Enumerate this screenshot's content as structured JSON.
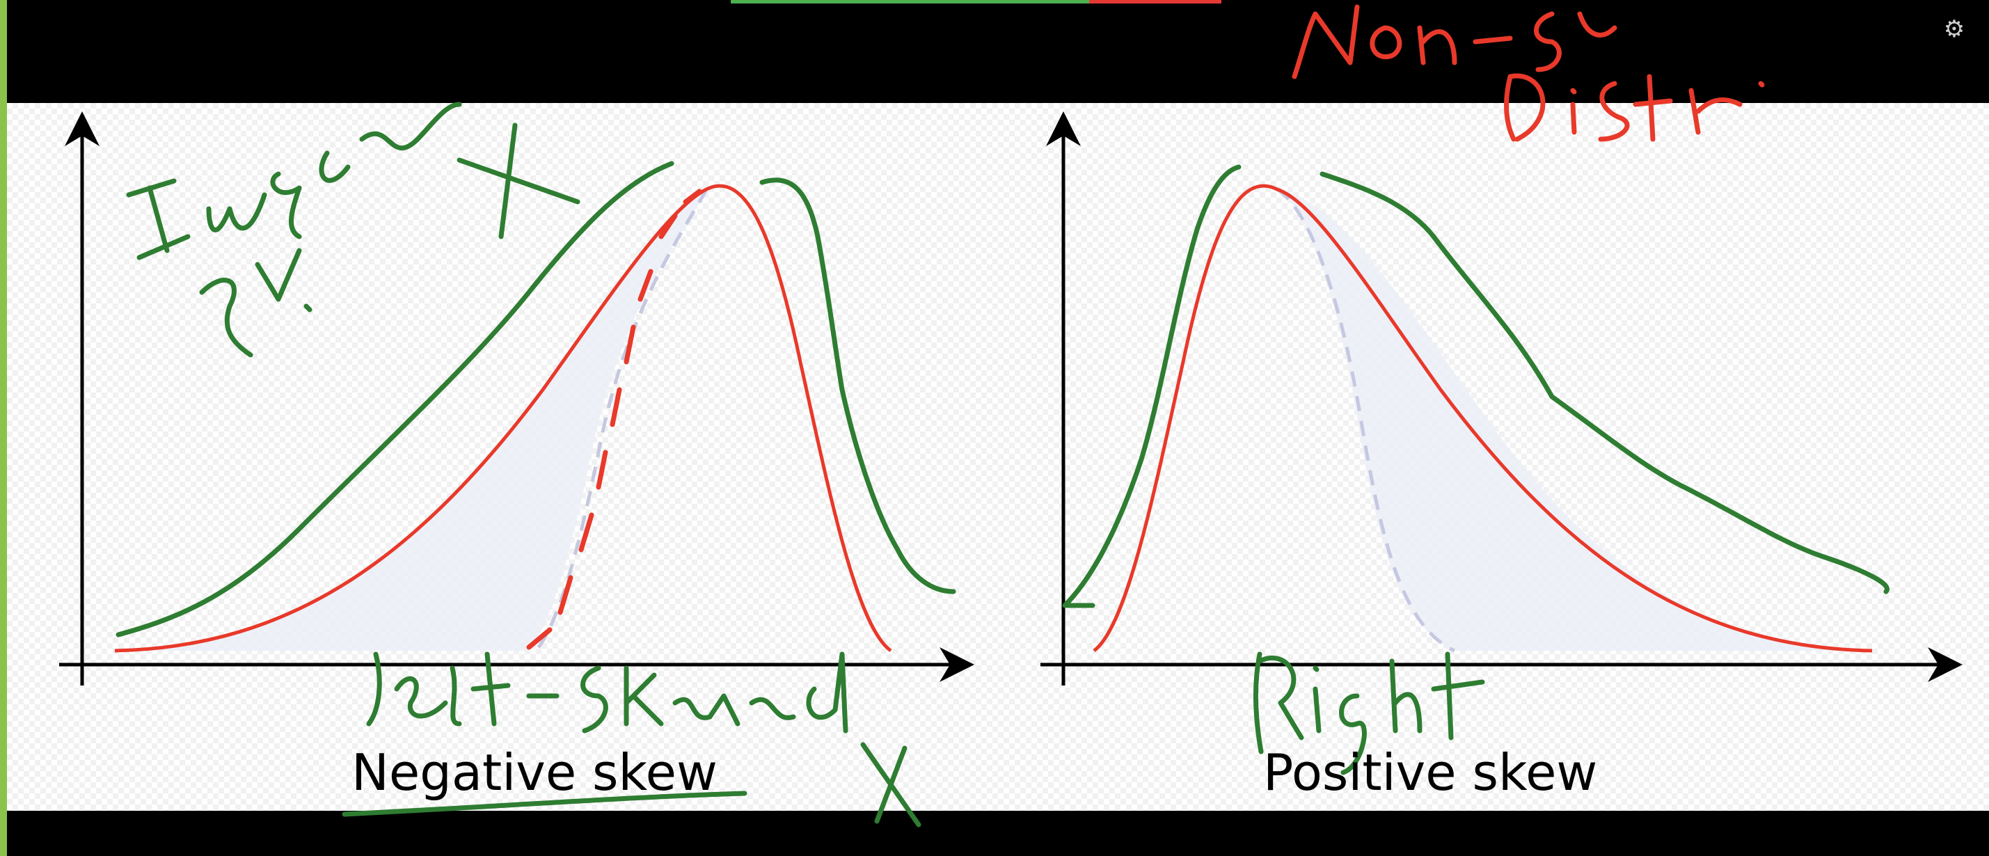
{
  "captions": {
    "left": "Negative skew",
    "right": "Positive skew"
  },
  "icons": {
    "settings": "gear-icon"
  },
  "colors": {
    "curve": "#e8392a",
    "annotation_green": "#2e7d32",
    "annotation_red": "#e8392a",
    "mode_line": "#c5c8e0",
    "area_fill": "#eef0f8",
    "progress_green": "#4caf50",
    "progress_red": "#e53935"
  },
  "progress": {
    "fraction": 0.73
  }
}
